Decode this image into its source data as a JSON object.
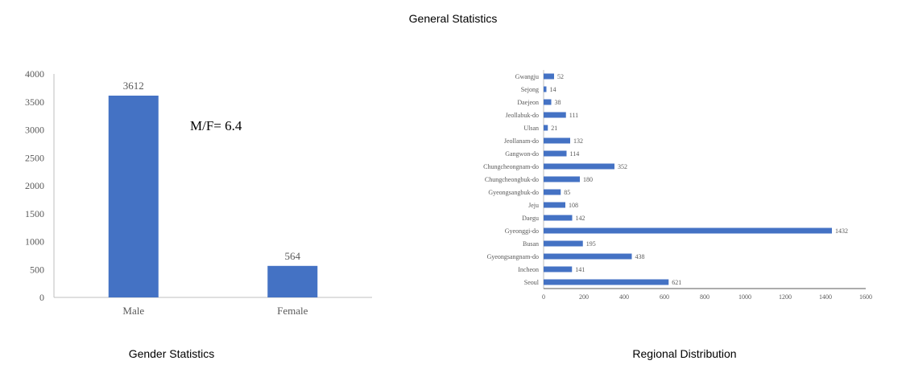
{
  "page_title": "General Statistics",
  "captions": {
    "gender": "Gender Statistics",
    "regional": "Regional Distribution"
  },
  "chart_data": [
    {
      "type": "bar",
      "orientation": "vertical",
      "categories": [
        "Male",
        "Female"
      ],
      "values": [
        3612,
        564
      ],
      "ylim": [
        0,
        4000
      ],
      "yticks": [
        0,
        500,
        1000,
        1500,
        2000,
        2500,
        3000,
        3500,
        4000
      ],
      "annotation": "M/F= 6.4",
      "grid": false,
      "bar_color": "#4472C4"
    },
    {
      "type": "bar",
      "orientation": "horizontal",
      "categories": [
        "Gwangju",
        "Sejong",
        "Daejeon",
        "Jeollabuk-do",
        "Ulsan",
        "Jeollanam-do",
        "Gangwon-do",
        "Chungcheongnam-do",
        "Chungcheongbuk-do",
        "Gyeongsangbuk-do",
        "Jeju",
        "Daegu",
        "Gyeonggi-do",
        "Busan",
        "Gyeongsangnam-do",
        "Incheon",
        "Seoul"
      ],
      "values": [
        52,
        14,
        38,
        111,
        21,
        132,
        114,
        352,
        180,
        85,
        108,
        142,
        1432,
        195,
        438,
        141,
        621
      ],
      "xlim": [
        0,
        1600
      ],
      "xticks": [
        0,
        200,
        400,
        600,
        800,
        1000,
        1200,
        1400,
        1600
      ],
      "grid": false,
      "bar_color": "#4472C4"
    }
  ]
}
